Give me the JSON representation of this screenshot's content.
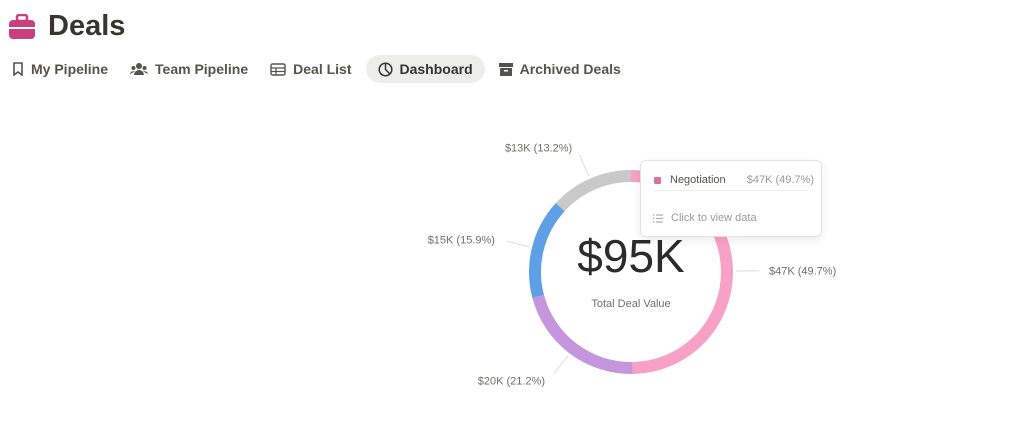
{
  "header": {
    "title": "Deals"
  },
  "tabs": [
    "My Pipeline",
    "Team Pipeline",
    "Deal List",
    "Dashboard",
    "Archived Deals"
  ],
  "chart_data": {
    "type": "donut",
    "categories": [
      "Negotiation",
      null,
      null,
      null
    ],
    "values": [
      49.7,
      21.2,
      15.9,
      13.2
    ],
    "value_labels": [
      "$47K (49.7%)",
      "$20K (21.2%)",
      "$15K (15.9%)",
      "$13K (13.2%)"
    ],
    "colors": [
      "#f7a1c6",
      "#c496de",
      "#5e9fe6",
      "#c9c9c9"
    ],
    "center_value": "$95K",
    "center_label": "Total Deal Value"
  },
  "tooltip": {
    "action": "Click to view data"
  }
}
